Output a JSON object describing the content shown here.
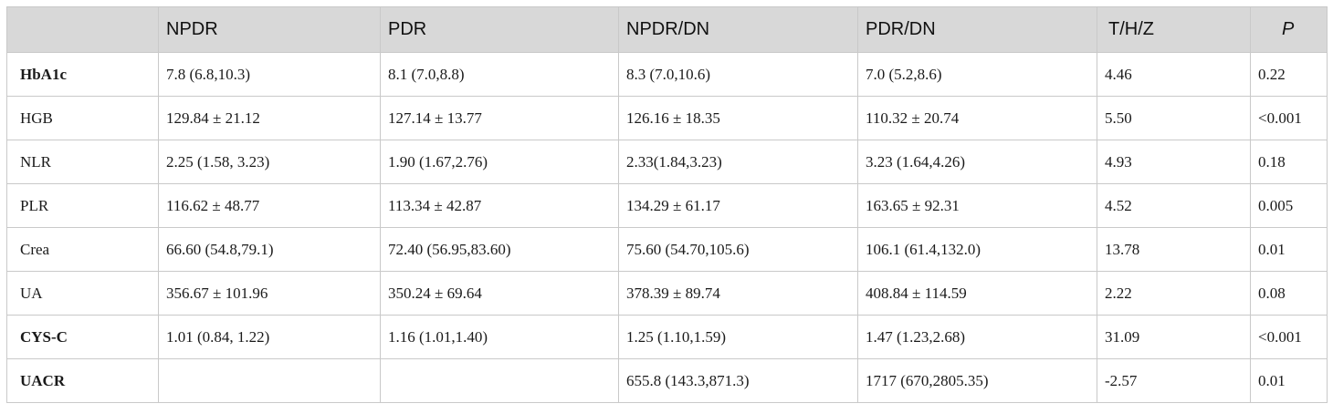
{
  "table": {
    "headers": [
      "",
      "NPDR",
      "PDR",
      "NPDR/DN",
      "PDR/DN",
      "T/H/Z",
      "P"
    ],
    "rows": [
      {
        "label": "HbA1c",
        "bold": true,
        "cells": [
          "7.8 (6.8,10.3)",
          "8.1 (7.0,8.8)",
          "8.3 (7.0,10.6)",
          "7.0 (5.2,8.6)",
          "4.46",
          "0.22"
        ]
      },
      {
        "label": "HGB",
        "bold": false,
        "cells": [
          "129.84 ± 21.12",
          "127.14 ± 13.77",
          "126.16 ± 18.35",
          "110.32 ± 20.74",
          "5.50",
          "<0.001"
        ]
      },
      {
        "label": "NLR",
        "bold": false,
        "cells": [
          "2.25 (1.58, 3.23)",
          "1.90 (1.67,2.76)",
          "2.33(1.84,3.23)",
          "3.23 (1.64,4.26)",
          "4.93",
          "0.18"
        ]
      },
      {
        "label": "PLR",
        "bold": false,
        "cells": [
          "116.62 ± 48.77",
          "113.34 ± 42.87",
          "134.29 ± 61.17",
          "163.65 ± 92.31",
          "4.52",
          "0.005"
        ]
      },
      {
        "label": "Crea",
        "bold": false,
        "cells": [
          "66.60 (54.8,79.1)",
          "72.40 (56.95,83.60)",
          "75.60 (54.70,105.6)",
          "106.1 (61.4,132.0)",
          "13.78",
          "0.01"
        ]
      },
      {
        "label": "UA",
        "bold": false,
        "cells": [
          "356.67 ± 101.96",
          "350.24 ± 69.64",
          "378.39 ± 89.74",
          "408.84 ± 114.59",
          "2.22",
          "0.08"
        ]
      },
      {
        "label": "CYS-C",
        "bold": true,
        "cells": [
          "1.01 (0.84, 1.22)",
          "1.16 (1.01,1.40)",
          "1.25 (1.10,1.59)",
          "1.47 (1.23,2.68)",
          "31.09",
          "<0.001"
        ]
      },
      {
        "label": "UACR",
        "bold": true,
        "cells": [
          "",
          "",
          "655.8 (143.3,871.3)",
          "1717 (670,2805.35)",
          "-2.57",
          "0.01"
        ]
      }
    ]
  }
}
